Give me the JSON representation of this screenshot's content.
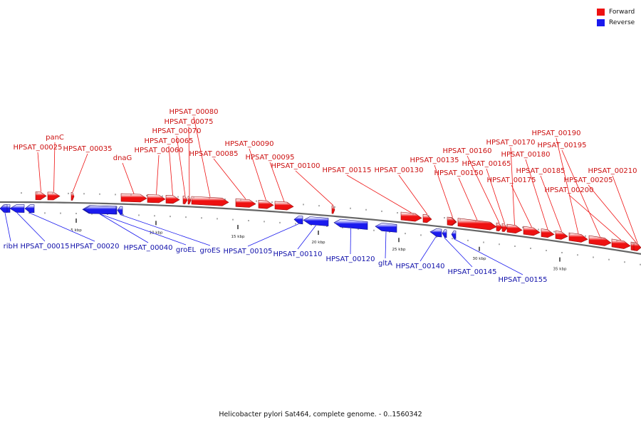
{
  "legend": {
    "forward_label": "Forward",
    "reverse_label": "Reverse"
  },
  "colors": {
    "forward": "#ee1111",
    "reverse": "#1a1aee",
    "backbone": "#777777"
  },
  "caption": "Helicobacter pylori Sat464, complete genome. - 0..1560342",
  "chart_data": {
    "type": "genome-map",
    "ticks": [
      "5 kbp",
      "10 kbp",
      "15 kbp",
      "20 kbp",
      "25 kbp",
      "30 kbp",
      "35 kbp"
    ],
    "forward_genes": [
      "HPSAT_00025",
      "panC",
      "HPSAT_00035",
      "dnaG",
      "HPSAT_00060",
      "HPSAT_00065",
      "HPSAT_00070",
      "HPSAT_00075",
      "HPSAT_00080",
      "HPSAT_00085",
      "HPSAT_00090",
      "HPSAT_00095",
      "HPSAT_00100",
      "HPSAT_00115",
      "HPSAT_00130",
      "HPSAT_00135",
      "HPSAT_00150",
      "HPSAT_00160",
      "HPSAT_00165",
      "HPSAT_00170",
      "HPSAT_00175",
      "HPSAT_00180",
      "HPSAT_00185",
      "HPSAT_00190",
      "HPSAT_00195",
      "HPSAT_00200",
      "HPSAT_00205",
      "HPSAT_00210"
    ],
    "reverse_genes": [
      "ribH",
      "HPSAT_00015",
      "HPSAT_00020",
      "HPSAT_00040",
      "groEL",
      "groES",
      "HPSAT_00105",
      "HPSAT_00110",
      "HPSAT_00120",
      "gltA",
      "HPSAT_00140",
      "HPSAT_00145",
      "HPSAT_00155"
    ]
  }
}
